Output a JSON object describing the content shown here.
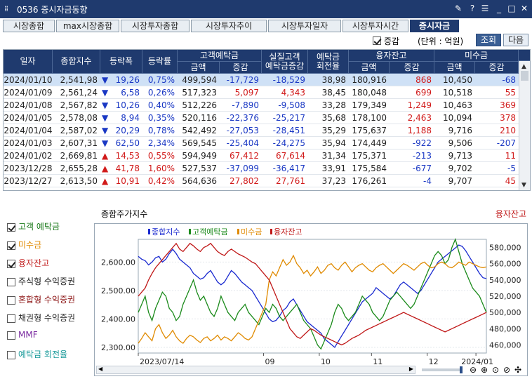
{
  "window": {
    "title": "0536 증시자금동향",
    "buttons": [
      "pin-icon",
      "help-icon",
      "menu-icon",
      "minimize-icon",
      "maximize-icon",
      "close-icon"
    ]
  },
  "tabs": [
    {
      "label": "시장종합"
    },
    {
      "label": "max시장종합"
    },
    {
      "label": "시장투자종합"
    },
    {
      "label": "시장투자추이"
    },
    {
      "label": "시장투자일자"
    },
    {
      "label": "시장투자시간"
    },
    {
      "label": "증시자금",
      "active": true
    }
  ],
  "toolbar": {
    "change_label": "증감",
    "unit_label": "(단위 : 억원)",
    "query_label": "조회",
    "next_label": "다음"
  },
  "table": {
    "headers": {
      "date": "일자",
      "index": "종합지수",
      "change": "등락폭",
      "rate": "등락률",
      "deposit": "고객예탁금",
      "real_deposit": "실질고객\n예탁금증감",
      "turnover": "예탁금\n회전율",
      "margin": "융자잔고",
      "unpaid": "미수금",
      "amount": "금액",
      "diff": "증감"
    },
    "rows": [
      {
        "date": "2024/01/10",
        "index": "2,541,98",
        "dir": "down",
        "change": "19,26",
        "rate": "0,75%",
        "dep_amt": "499,594",
        "dep_diff": "-17,729",
        "real": "-18,529",
        "turn": "38,98",
        "mar_amt": "180,916",
        "mar_diff": "868",
        "un_amt": "10,450",
        "un_diff": "-68"
      },
      {
        "date": "2024/01/09",
        "index": "2,561,24",
        "dir": "down",
        "change": "6,58",
        "rate": "0,26%",
        "dep_amt": "517,323",
        "dep_diff": "5,097",
        "real": "4,343",
        "turn": "38,45",
        "mar_amt": "180,048",
        "mar_diff": "699",
        "un_amt": "10,518",
        "un_diff": "55"
      },
      {
        "date": "2024/01/08",
        "index": "2,567,82",
        "dir": "down",
        "change": "10,26",
        "rate": "0,40%",
        "dep_amt": "512,226",
        "dep_diff": "-7,890",
        "real": "-9,508",
        "turn": "33,28",
        "mar_amt": "179,349",
        "mar_diff": "1,249",
        "un_amt": "10,463",
        "un_diff": "369"
      },
      {
        "date": "2024/01/05",
        "index": "2,578,08",
        "dir": "down",
        "change": "8,94",
        "rate": "0,35%",
        "dep_amt": "520,116",
        "dep_diff": "-22,376",
        "real": "-25,217",
        "turn": "35,68",
        "mar_amt": "178,100",
        "mar_diff": "2,463",
        "un_amt": "10,094",
        "un_diff": "378"
      },
      {
        "date": "2024/01/04",
        "index": "2,587,02",
        "dir": "down",
        "change": "20,29",
        "rate": "0,78%",
        "dep_amt": "542,492",
        "dep_diff": "-27,053",
        "real": "-28,451",
        "turn": "35,29",
        "mar_amt": "175,637",
        "mar_diff": "1,188",
        "un_amt": "9,716",
        "un_diff": "210"
      },
      {
        "date": "2024/01/03",
        "index": "2,607,31",
        "dir": "down",
        "change": "62,50",
        "rate": "2,34%",
        "dep_amt": "569,545",
        "dep_diff": "-25,404",
        "real": "-24,275",
        "turn": "35,94",
        "mar_amt": "174,449",
        "mar_diff": "-922",
        "un_amt": "9,506",
        "un_diff": "-207"
      },
      {
        "date": "2024/01/02",
        "index": "2,669,81",
        "dir": "up",
        "change": "14,53",
        "rate": "0,55%",
        "dep_amt": "594,949",
        "dep_diff": "67,412",
        "real": "67,614",
        "turn": "31,34",
        "mar_amt": "175,371",
        "mar_diff": "-213",
        "un_amt": "9,713",
        "un_diff": "11"
      },
      {
        "date": "2023/12/28",
        "index": "2,655,28",
        "dir": "up",
        "change": "41,78",
        "rate": "1,60%",
        "dep_amt": "527,537",
        "dep_diff": "-37,099",
        "real": "-36,417",
        "turn": "33,91",
        "mar_amt": "175,584",
        "mar_diff": "-677",
        "un_amt": "9,702",
        "un_diff": "-5"
      },
      {
        "date": "2023/12/27",
        "index": "2,613,50",
        "dir": "up",
        "change": "10,91",
        "rate": "0,42%",
        "dep_amt": "564,636",
        "dep_diff": "27,802",
        "real": "27,761",
        "turn": "37,23",
        "mar_amt": "176,261",
        "mar_diff": "-4",
        "un_amt": "9,707",
        "un_diff": "45"
      }
    ]
  },
  "chart_section": {
    "left_title": "종합주가지수",
    "right_title": "융자잔고",
    "legend_items": [
      {
        "label": "고객 예탁금",
        "checked": true,
        "color": "#1a7a1a"
      },
      {
        "label": "미수금",
        "checked": true,
        "color": "#e08a00"
      },
      {
        "label": "융자잔고",
        "checked": true,
        "color": "#c01818"
      },
      {
        "label": "주식형 수익증권",
        "checked": false,
        "color": "#222222"
      },
      {
        "label": "혼합형 수익증권",
        "checked": false,
        "color": "#8a1010"
      },
      {
        "label": "채권형 수익증권",
        "checked": false,
        "color": "#222222"
      },
      {
        "label": "MMF",
        "checked": false,
        "color": "#7a2aa0"
      },
      {
        "label": "예탁금 회전율",
        "checked": false,
        "color": "#1a9a9a"
      }
    ]
  },
  "chart_data": {
    "type": "line",
    "legend": [
      "종합지수",
      "고객예탁금",
      "미수금",
      "융자잔고"
    ],
    "y_left": {
      "ticks": [
        "2,600.00",
        "2,500.00",
        "2,400.00",
        "2,300.00"
      ],
      "range": [
        2280,
        2680
      ]
    },
    "y_right": {
      "ticks": [
        "580,000",
        "560,000",
        "540,000",
        "520,000",
        "500,000",
        "480,000",
        "460,000"
      ],
      "range": [
        450000,
        590000
      ]
    },
    "x_ticks": [
      "2023/07/14",
      "09",
      "10",
      "11",
      "12",
      "2024/01"
    ],
    "series": [
      {
        "name": "종합지수",
        "color": "#1a2ad0",
        "values": [
          2620,
          2610,
          2605,
          2590,
          2600,
          2615,
          2620,
          2600,
          2610,
          2630,
          2645,
          2630,
          2610,
          2600,
          2590,
          2580,
          2560,
          2550,
          2540,
          2545,
          2560,
          2570,
          2550,
          2530,
          2520,
          2530,
          2550,
          2570,
          2560,
          2545,
          2530,
          2520,
          2510,
          2500,
          2480,
          2460,
          2440,
          2420,
          2400,
          2390,
          2395,
          2410,
          2430,
          2440,
          2460,
          2470,
          2450,
          2430,
          2410,
          2390,
          2380,
          2370,
          2360,
          2350,
          2330,
          2320,
          2310,
          2300,
          2320,
          2340,
          2360,
          2380,
          2400,
          2420,
          2440,
          2460,
          2470,
          2480,
          2490,
          2510,
          2500,
          2490,
          2480,
          2470,
          2480,
          2500,
          2520,
          2530,
          2520,
          2510,
          2500,
          2490,
          2500,
          2520,
          2540,
          2560,
          2580,
          2600,
          2610,
          2620,
          2630,
          2640,
          2650,
          2660,
          2655,
          2640,
          2620,
          2600,
          2580,
          2560,
          2545,
          2542
        ]
      },
      {
        "name": "고객예탁금",
        "color": "#1a8a1a",
        "values": [
          500000,
          510000,
          520000,
          500000,
          490000,
          505000,
          515000,
          525000,
          520000,
          505000,
          500000,
          490000,
          495000,
          510000,
          520000,
          530000,
          540000,
          525000,
          515000,
          520000,
          510000,
          500000,
          495000,
          505000,
          520000,
          510000,
          500000,
          495000,
          490000,
          500000,
          505000,
          510000,
          500000,
          495000,
          490000,
          485000,
          495000,
          505000,
          500000,
          510000,
          505000,
          495000,
          490000,
          495000,
          500000,
          505000,
          510000,
          500000,
          490000,
          485000,
          480000,
          470000,
          460000,
          455000,
          465000,
          475000,
          485000,
          500000,
          510000,
          505000,
          495000,
          490000,
          495000,
          500000,
          510000,
          520000,
          515000,
          510000,
          500000,
          495000,
          490000,
          495000,
          505000,
          515000,
          520000,
          525000,
          520000,
          515000,
          510000,
          505000,
          510000,
          520000,
          530000,
          540000,
          550000,
          560000,
          570000,
          575000,
          570000,
          560000,
          565000,
          580000,
          590000,
          575000,
          560000,
          550000,
          540000,
          530000,
          525000,
          520000,
          510000,
          500000
        ]
      },
      {
        "name": "미수금",
        "color": "#e08a00",
        "values": [
          462000,
          468000,
          475000,
          470000,
          465000,
          480000,
          485000,
          475000,
          468000,
          472000,
          478000,
          470000,
          465000,
          462000,
          468000,
          472000,
          470000,
          466000,
          463000,
          468000,
          470000,
          465000,
          468000,
          472000,
          466000,
          470000,
          468000,
          465000,
          470000,
          475000,
          472000,
          468000,
          466000,
          470000,
          480000,
          490000,
          500000,
          510000,
          540000,
          550000,
          545000,
          555000,
          565000,
          558000,
          562000,
          570000,
          560000,
          555000,
          548000,
          552000,
          545000,
          550000,
          556000,
          548000,
          552000,
          558000,
          560000,
          555000,
          552000,
          558000,
          562000,
          556000,
          550000,
          555000,
          558000,
          560000,
          556000,
          552000,
          550000,
          555000,
          558000,
          560000,
          556000,
          552000,
          548000,
          552000,
          556000,
          560000,
          558000,
          555000,
          552000,
          556000,
          560000,
          562000,
          558000,
          555000,
          556000,
          560000,
          562000,
          560000,
          556000,
          555000,
          558000,
          562000,
          560000,
          558000,
          562000,
          560000,
          558000,
          556000,
          555000,
          556000
        ]
      },
      {
        "name": "융자잔고",
        "color": "#c01818",
        "values": [
          520000,
          525000,
          530000,
          540000,
          548000,
          555000,
          560000,
          565000,
          570000,
          575000,
          580000,
          585000,
          578000,
          575000,
          580000,
          585000,
          582000,
          578000,
          575000,
          580000,
          582000,
          585000,
          580000,
          575000,
          572000,
          570000,
          575000,
          578000,
          575000,
          572000,
          570000,
          568000,
          565000,
          562000,
          560000,
          555000,
          550000,
          545000,
          540000,
          530000,
          520000,
          510000,
          500000,
          490000,
          480000,
          475000,
          470000,
          468000,
          472000,
          476000,
          480000,
          478000,
          475000,
          472000,
          470000,
          468000,
          466000,
          464000,
          462000,
          460000,
          462000,
          465000,
          468000,
          470000,
          472000,
          475000,
          478000,
          480000,
          482000,
          484000,
          486000,
          488000,
          490000,
          492000,
          494000,
          496000,
          498000,
          500000,
          498000,
          496000,
          494000,
          492000,
          490000,
          488000,
          486000,
          484000,
          482000,
          480000,
          478000,
          476000,
          478000,
          480000,
          482000,
          484000,
          486000,
          488000,
          490000,
          492000,
          494000,
          496000,
          498000,
          500000
        ]
      }
    ]
  }
}
